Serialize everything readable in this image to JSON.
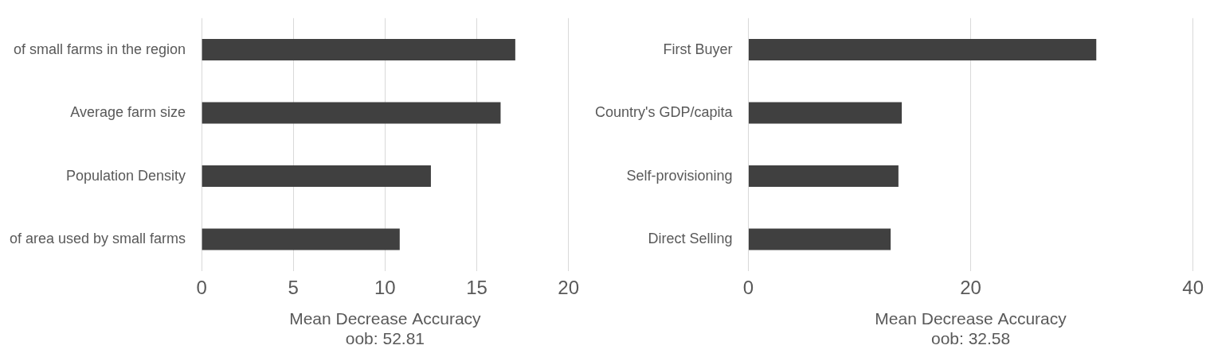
{
  "chart_data": [
    {
      "type": "bar",
      "orientation": "horizontal",
      "categories": [
        "of small farms in the region",
        "Average farm size",
        "Population Density",
        "of area used by small farms"
      ],
      "values": [
        17.1,
        16.3,
        12.5,
        10.8
      ],
      "color": "#404040",
      "xlim": [
        0,
        20
      ],
      "xticks": [
        0,
        5,
        10,
        15,
        20
      ],
      "grid": true,
      "x_label": [
        "Mean Decrease Accuracy",
        "oob: 52.81"
      ]
    },
    {
      "type": "bar",
      "orientation": "horizontal",
      "categories": [
        "First Buyer",
        "Country's GDP/capita",
        "Self-provisioning",
        "Direct Selling"
      ],
      "values": [
        31.3,
        13.8,
        13.5,
        12.8
      ],
      "color": "#404040",
      "xlim": [
        0,
        40
      ],
      "xticks": [
        0,
        20,
        40
      ],
      "grid": true,
      "x_label": [
        "Mean Decrease Accuracy",
        "oob: 32.58"
      ]
    }
  ]
}
